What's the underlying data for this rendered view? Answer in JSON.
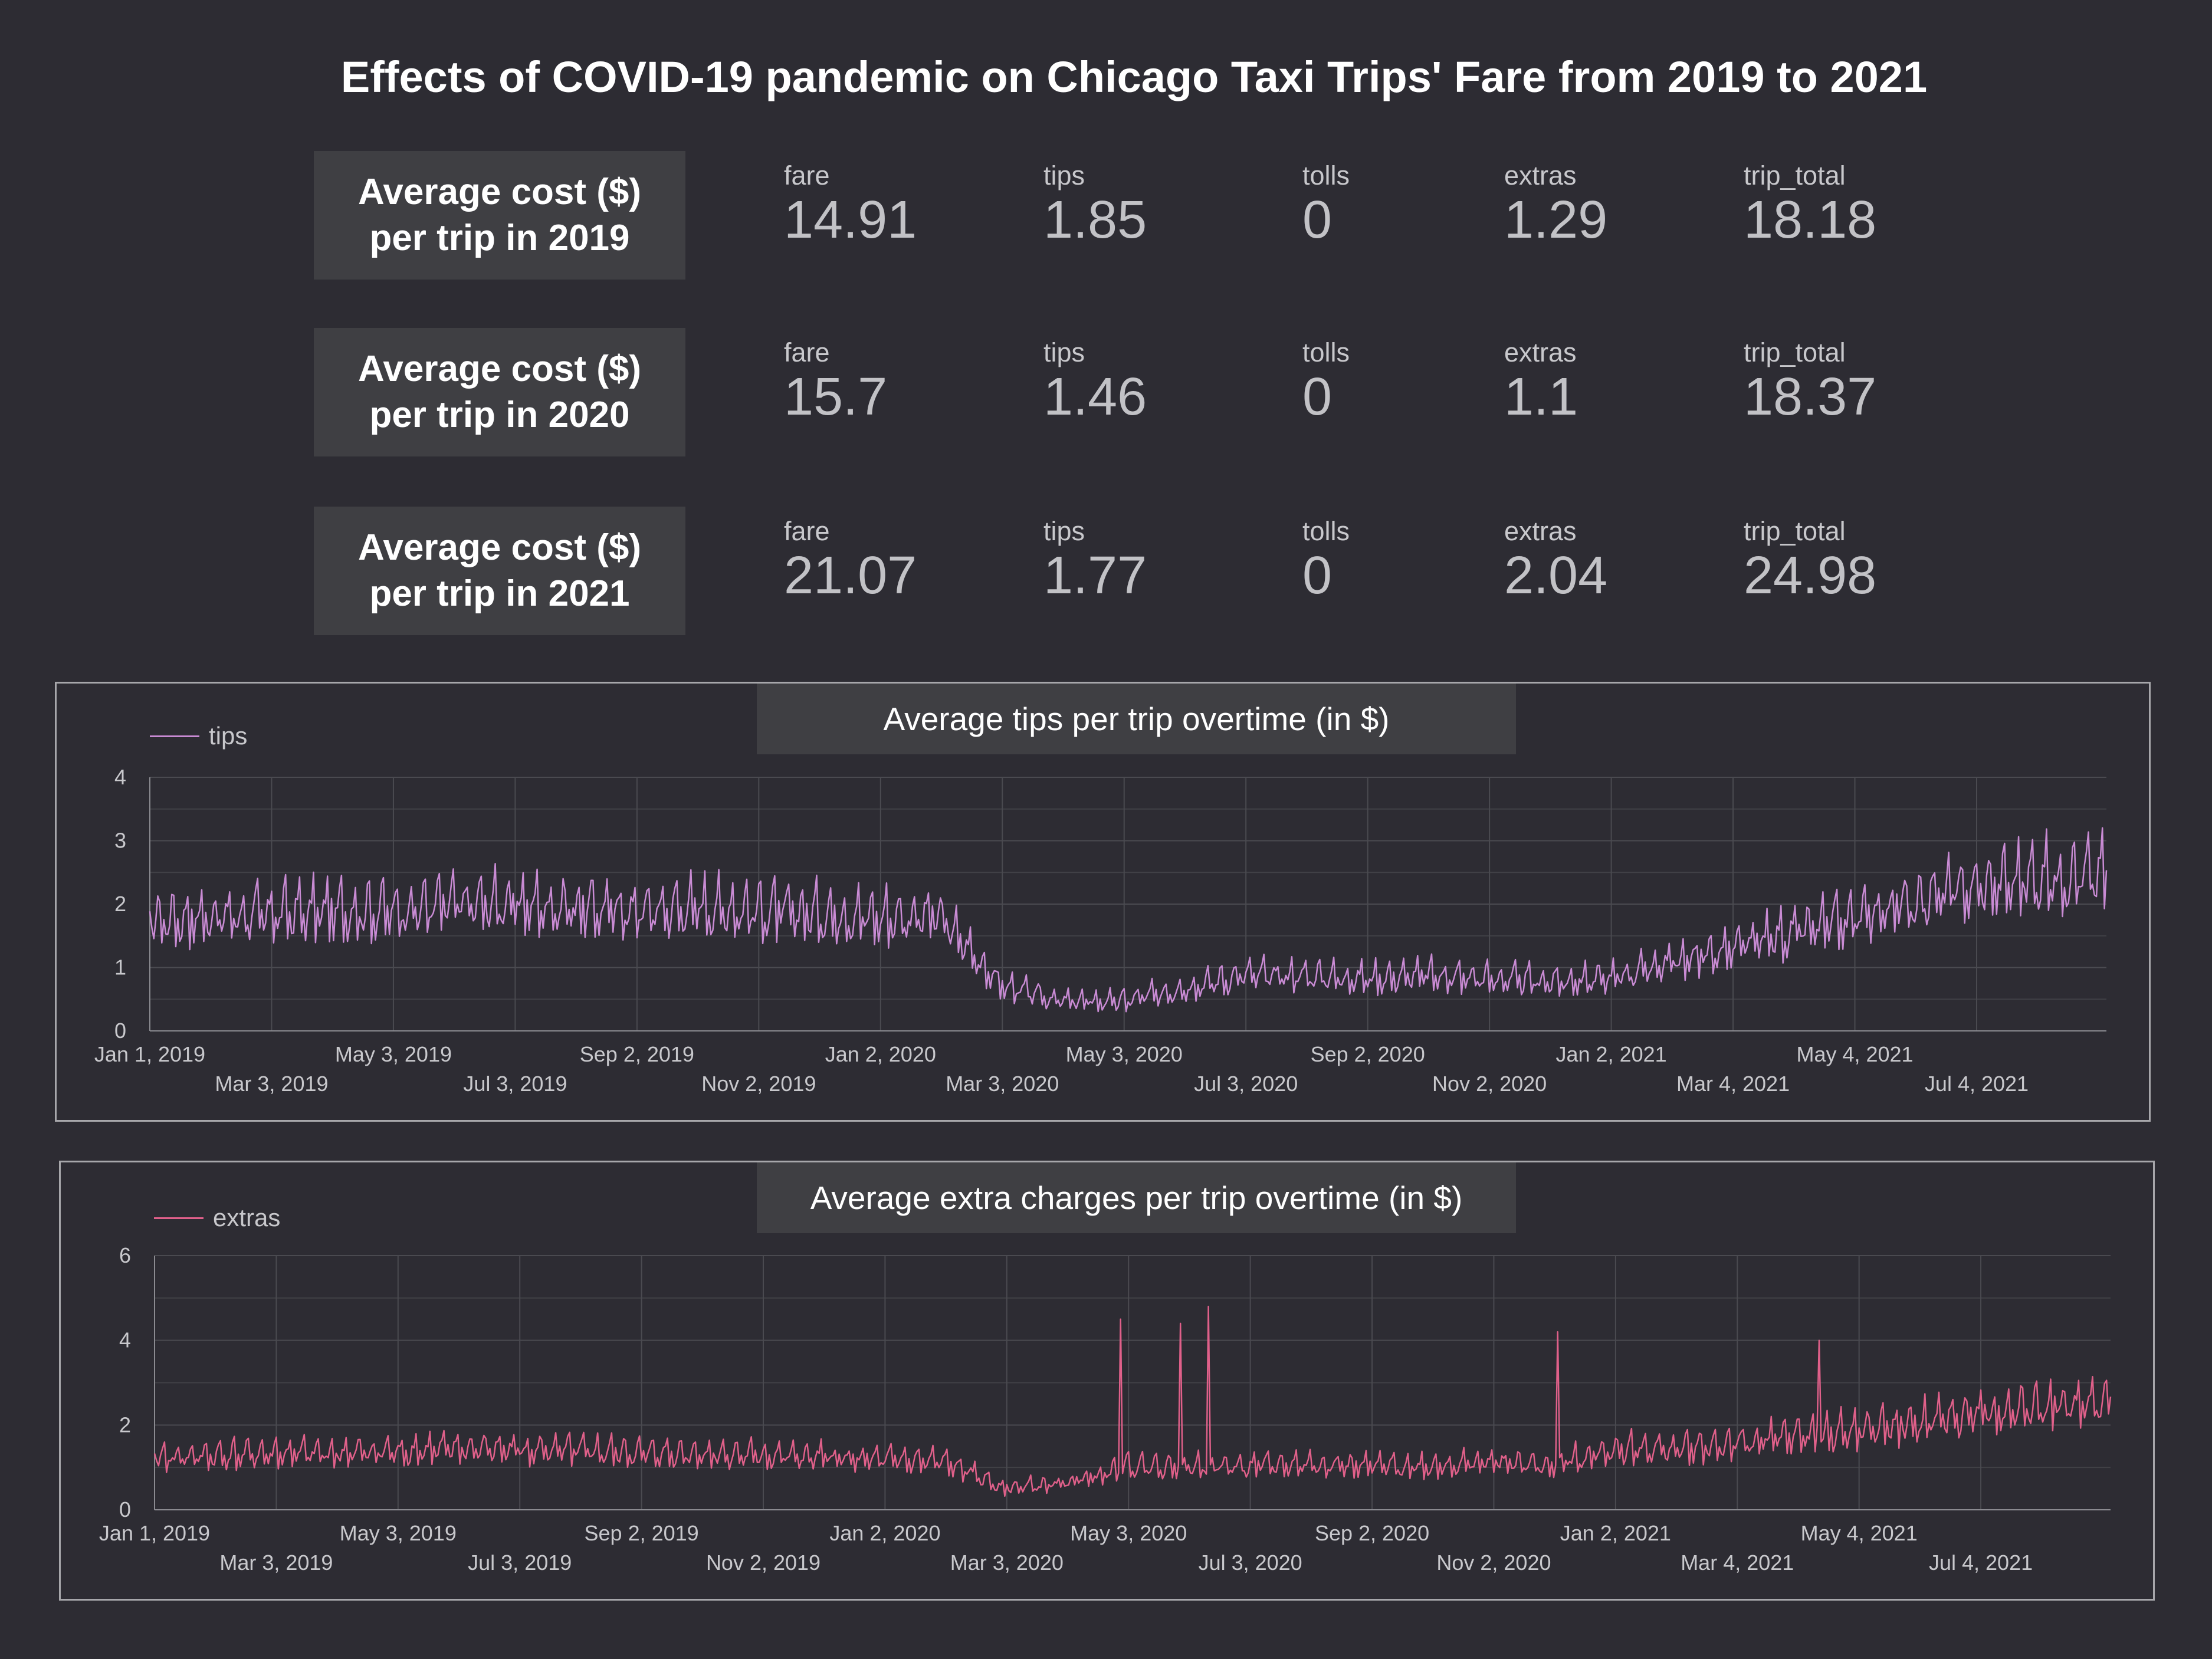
{
  "title": "Effects of COVID-19 pandemic on Chicago Taxi Trips' Fare from 2019 to 2021",
  "kpis": [
    {
      "label_line1": "Average cost ($)",
      "label_line2": "per trip in 2019",
      "fare_label": "fare",
      "fare": "14.91",
      "tips_label": "tips",
      "tips": "1.85",
      "tolls_label": "tolls",
      "tolls": "0",
      "extras_label": "extras",
      "extras": "1.29",
      "total_label": "trip_total",
      "total": "18.18"
    },
    {
      "label_line1": "Average cost ($)",
      "label_line2": "per trip in 2020",
      "fare_label": "fare",
      "fare": "15.7",
      "tips_label": "tips",
      "tips": "1.46",
      "tolls_label": "tolls",
      "tolls": "0",
      "extras_label": "extras",
      "extras": "1.1",
      "total_label": "trip_total",
      "total": "18.37"
    },
    {
      "label_line1": "Average cost ($)",
      "label_line2": "per trip in 2021",
      "fare_label": "fare",
      "fare": "21.07",
      "tips_label": "tips",
      "tips": "1.77",
      "tolls_label": "tolls",
      "tolls": "0",
      "extras_label": "extras",
      "extras": "2.04",
      "total_label": "trip_total",
      "total": "24.98"
    }
  ],
  "colors": {
    "tips": "#c98bd4",
    "extras": "#e0608a",
    "grid": "#4a4a50",
    "axis_text": "#c8c8cc"
  },
  "chart_data": [
    {
      "type": "line",
      "title": "Average tips per trip overtime (in $)",
      "legend": "top-left",
      "series_name": "tips",
      "xlabel": "",
      "ylabel": "",
      "ylim": [
        0,
        4
      ],
      "yticks": [
        "0",
        "1",
        "2",
        "3",
        "4"
      ],
      "x_range": [
        "Jan 1, 2019",
        "Sep 7, 2021"
      ],
      "xticks": [
        "Jan 1, 2019",
        "Mar 3, 2019",
        "May 3, 2019",
        "Jul 3, 2019",
        "Sep 2, 2019",
        "Nov 2, 2019",
        "Jan 2, 2020",
        "Mar 3, 2020",
        "May 3, 2020",
        "Jul 3, 2020",
        "Sep 2, 2020",
        "Nov 2, 2020",
        "Jan 2, 2021",
        "Mar 4, 2021",
        "May 4, 2021",
        "Jul 4, 2021"
      ],
      "monthly_mean": [
        1.7,
        1.75,
        1.8,
        1.85,
        1.85,
        1.95,
        1.95,
        1.9,
        1.85,
        1.9,
        1.85,
        1.8,
        1.75,
        1.75,
        0.7,
        0.45,
        0.45,
        0.65,
        0.85,
        0.85,
        0.8,
        0.85,
        0.8,
        0.75,
        0.8,
        1.05,
        1.25,
        1.5,
        1.7,
        2.0,
        2.2,
        2.35,
        2.4
      ]
    },
    {
      "type": "line",
      "title": "Average extra charges per trip overtime (in $)",
      "legend": "top-left",
      "series_name": "extras",
      "xlabel": "",
      "ylabel": "",
      "ylim": [
        0,
        6
      ],
      "yticks": [
        "0",
        "2",
        "4",
        "6"
      ],
      "x_range": [
        "Jan 1, 2019",
        "Sep 7, 2021"
      ],
      "xticks": [
        "Jan 1, 2019",
        "Mar 3, 2019",
        "May 3, 2019",
        "Jul 3, 2019",
        "Sep 2, 2019",
        "Nov 2, 2019",
        "Jan 2, 2020",
        "Mar 3, 2020",
        "May 3, 2020",
        "Jul 3, 2020",
        "Sep 2, 2020",
        "Nov 2, 2020",
        "Jan 2, 2021",
        "Mar 4, 2021",
        "May 4, 2021",
        "Jul 4, 2021"
      ],
      "monthly_mean": [
        1.2,
        1.25,
        1.3,
        1.3,
        1.35,
        1.4,
        1.4,
        1.35,
        1.3,
        1.3,
        1.25,
        1.2,
        1.15,
        1.1,
        0.5,
        0.6,
        1.0,
        1.0,
        1.0,
        1.05,
        1.0,
        1.0,
        1.1,
        1.0,
        1.4,
        1.4,
        1.5,
        1.7,
        1.8,
        2.0,
        2.2,
        2.4,
        2.4
      ],
      "spikes": [
        {
          "date": "Apr 29, 2020",
          "value": 4.5
        },
        {
          "date": "May 29, 2020",
          "value": 4.4
        },
        {
          "date": "Jun 12, 2020",
          "value": 4.8
        },
        {
          "date": "Dec 4, 2020",
          "value": 4.2
        },
        {
          "date": "Apr 14, 2021",
          "value": 4.0
        }
      ]
    }
  ]
}
